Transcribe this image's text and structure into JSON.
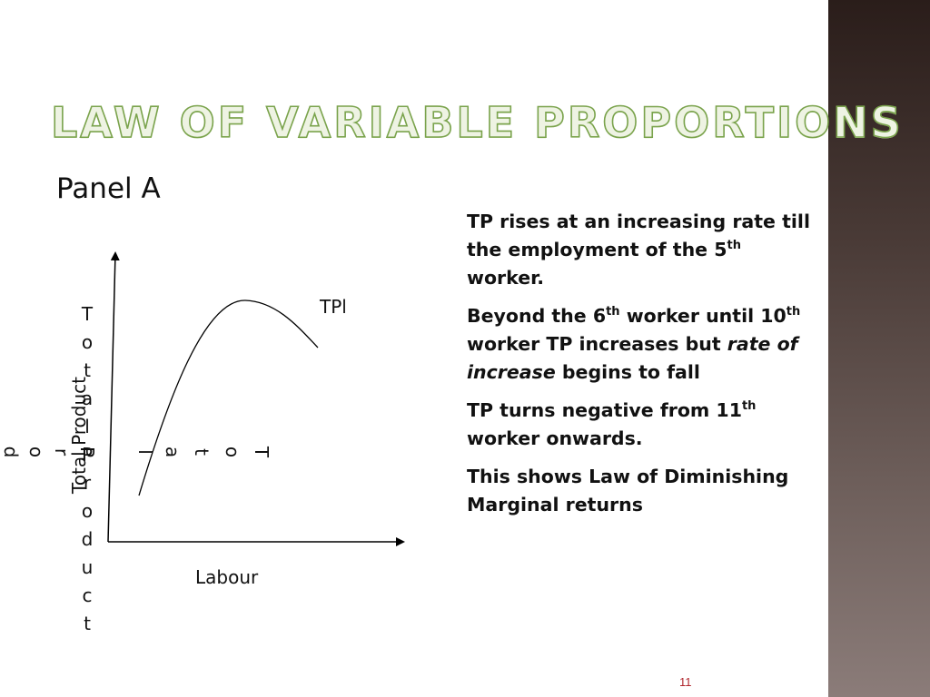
{
  "slide": {
    "title": "Law of variable proportions",
    "panel_label": "Panel A",
    "page_number": "11"
  },
  "graph": {
    "curve_label": "TPl",
    "x_axis_label": "Labour",
    "y_axis_label": "Total Product",
    "stacked_word_1": "Total Product",
    "stacked_word_2": "Total Prod",
    "stacked_word_3": "Total"
  },
  "bullets": [
    {
      "a": "TP rises at an increasing rate till the employment of the 5",
      "sup": "th",
      "b": " worker."
    },
    {
      "a": "Beyond the 6",
      "sup1": "th",
      "b": " worker until 10",
      "sup2": "th",
      "c": " worker TP increases but ",
      "em": "rate of increase",
      "d": " begins to fall"
    },
    {
      "a": "TP turns negative from 11",
      "sup": "th",
      "b": " worker onwards."
    },
    {
      "a": "This shows Law of Diminishing Marginal returns"
    }
  ],
  "colors": {
    "title_fill": "#eef3e3",
    "title_outline": "#7aa34c",
    "sidebar_dark": "#2a1d1a",
    "sidebar_light": "#8b7c79",
    "page_number": "#b0262d"
  }
}
